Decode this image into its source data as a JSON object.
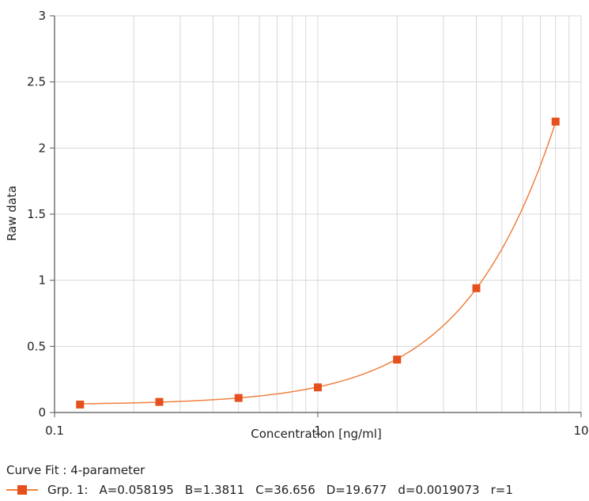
{
  "chart_data": {
    "type": "scatter",
    "title": "",
    "xlabel": "Concentration [ng/ml]",
    "ylabel": "Raw data",
    "xscale": "log",
    "xlim": [
      0.1,
      10
    ],
    "ylim": [
      0,
      3
    ],
    "x_ticks": [
      "0.1",
      "1",
      "10"
    ],
    "y_ticks": [
      "0",
      "0.5",
      "1",
      "1.5",
      "2",
      "2.5",
      "3"
    ],
    "grid": true,
    "legend_position": "bottom",
    "series": [
      {
        "name": "Grp. 1",
        "x": [
          0.125,
          0.25,
          0.5,
          1,
          2,
          4,
          8
        ],
        "y": [
          0.06,
          0.08,
          0.11,
          0.19,
          0.4,
          0.94,
          2.2
        ],
        "marker_color": "#e5501e",
        "fit_line_color": "#f08040"
      }
    ],
    "fit": {
      "caption": "Curve Fit : 4-parameter",
      "params": {
        "A": 0.058195,
        "B": 1.3811,
        "C": 36.656,
        "D": 19.677
      },
      "param_labels": {
        "group": "Grp. 1:",
        "A": "A=0.058195",
        "B": "B=1.3811",
        "C": "C=36.656",
        "D": "D=19.677",
        "d": "d=0.0019073",
        "r": "r=1"
      }
    },
    "colors": {
      "grid": "#d8d8d8",
      "axis": "#555555"
    }
  }
}
